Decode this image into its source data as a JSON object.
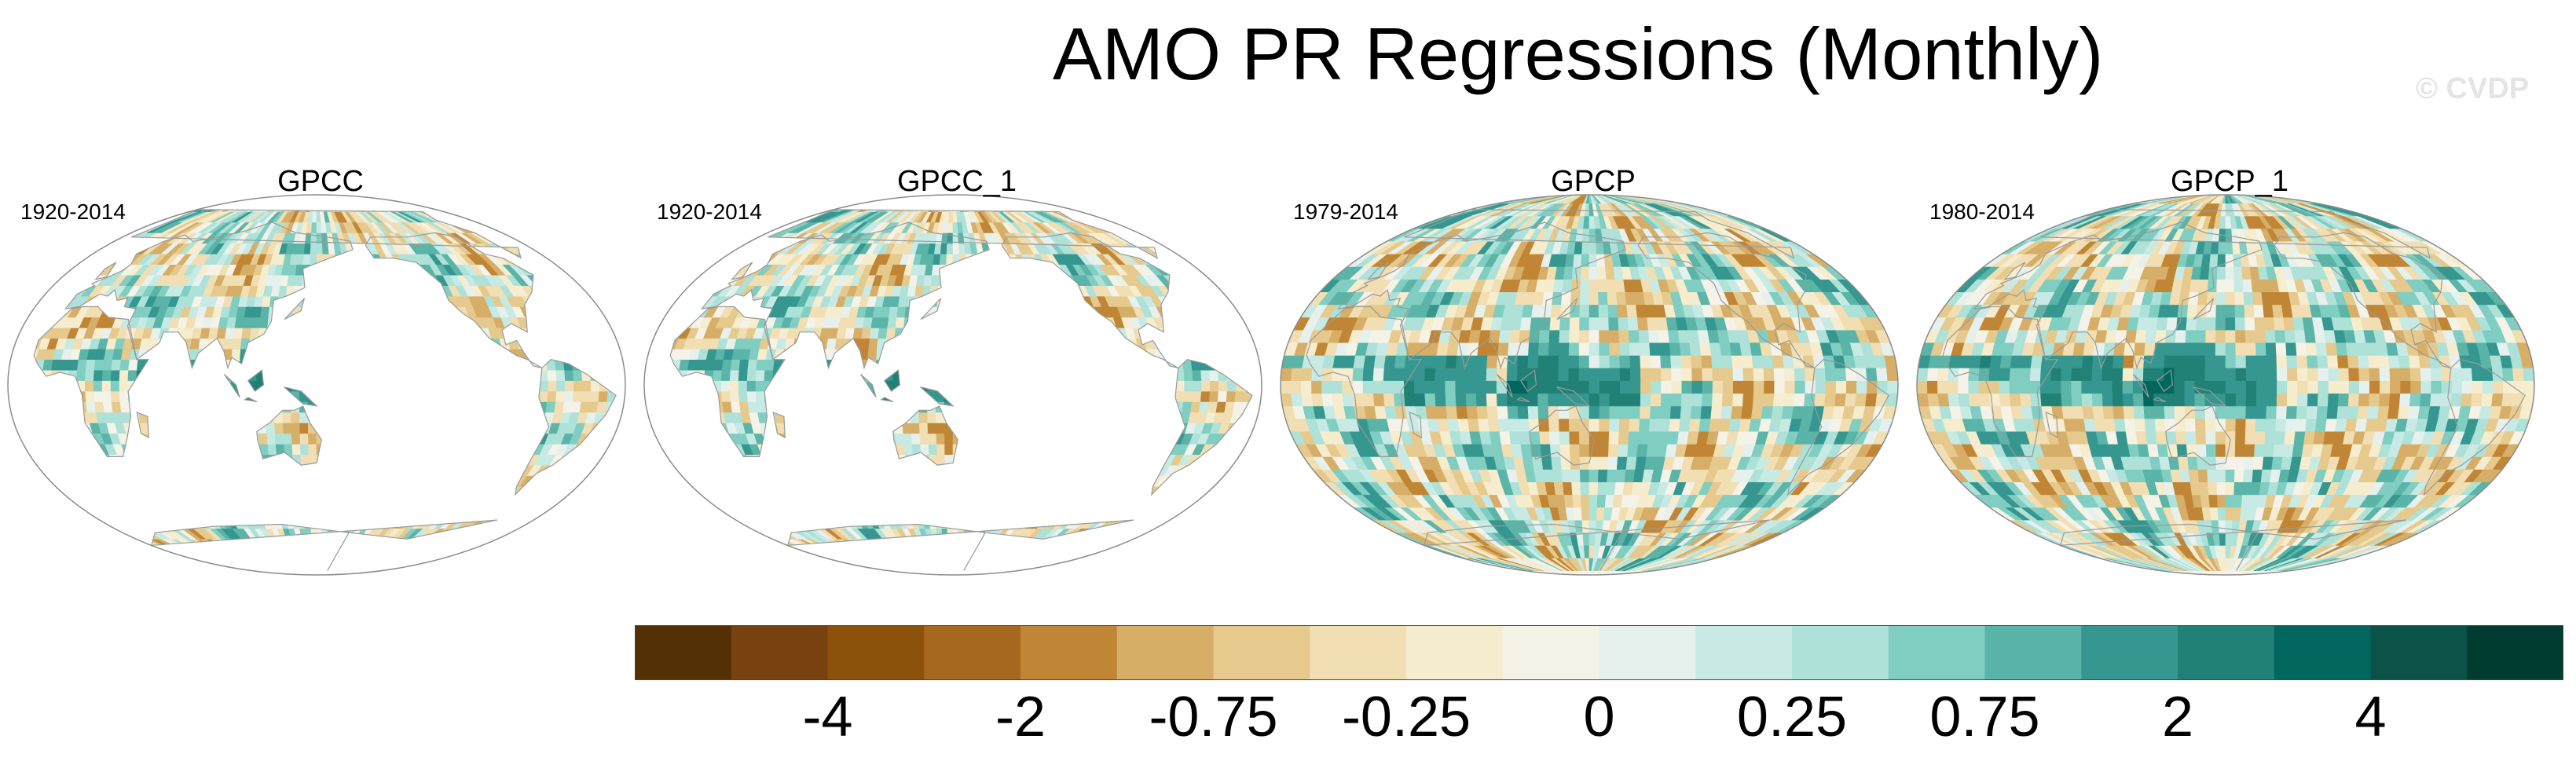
{
  "title": "AMO PR Regressions (Monthly)",
  "watermark": "© CVDP",
  "panels": [
    {
      "name": "GPCC",
      "years": "1920-2014",
      "coverage": "land"
    },
    {
      "name": "GPCC_1",
      "years": "1920-2014",
      "coverage": "land"
    },
    {
      "name": "GPCP",
      "years": "1979-2014",
      "coverage": "global"
    },
    {
      "name": "GPCP_1",
      "years": "1980-2014",
      "coverage": "global"
    }
  ],
  "colorbar": {
    "colors": [
      "#543005",
      "#774110",
      "#8c510a",
      "#a6681f",
      "#c08636",
      "#d6ae68",
      "#e6c98c",
      "#f1deb2",
      "#f6ecce",
      "#f5f2e8",
      "#e6f1ee",
      "#c7eae5",
      "#aee1d8",
      "#80cdc1",
      "#5ab4a7",
      "#35978f",
      "#218176",
      "#01665e",
      "#0b5348",
      "#003c30"
    ],
    "labels": [
      "-4",
      "-2",
      "-0.75",
      "-0.25",
      "0",
      "0.25",
      "0.75",
      "2",
      "4"
    ]
  },
  "colors": {
    "land_outline": "#9a9a9a",
    "map_border": "#8c8c8c"
  }
}
